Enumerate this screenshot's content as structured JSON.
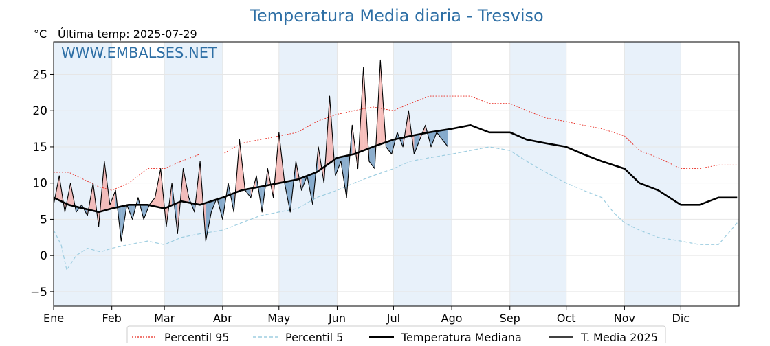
{
  "title": "Temperatura Media diaria - Tresviso",
  "unit_label": "°C",
  "last_temp": "Última temp: 2025-07-29",
  "watermark": "WWW.EMBALSES.NET",
  "colors": {
    "title": "#2e6fa5",
    "p95": "#e8261c",
    "p5": "#9dcde0",
    "median": "#000000",
    "current": "#000000",
    "fill_above": "#f4a9a6",
    "fill_below": "#5b8bb8",
    "month_band": "#e8f1fa"
  },
  "chart_data": {
    "type": "line",
    "xlabel": "",
    "ylabel": "°C",
    "ylim": [
      -7,
      29.5
    ],
    "xlim": [
      0,
      365
    ],
    "grid": true,
    "yticks": [
      -5,
      0,
      5,
      10,
      15,
      20,
      25
    ],
    "ytick_labels": [
      "−5",
      "0",
      "5",
      "10",
      "15",
      "20",
      "25"
    ],
    "months": [
      {
        "label": "Ene",
        "day": 0
      },
      {
        "label": "Feb",
        "day": 31
      },
      {
        "label": "Mar",
        "day": 59
      },
      {
        "label": "Abr",
        "day": 90
      },
      {
        "label": "May",
        "day": 120
      },
      {
        "label": "Jun",
        "day": 151
      },
      {
        "label": "Jul",
        "day": 181
      },
      {
        "label": "Ago",
        "day": 212
      },
      {
        "label": "Sep",
        "day": 243
      },
      {
        "label": "Oct",
        "day": 273
      },
      {
        "label": "Nov",
        "day": 304
      },
      {
        "label": "Dic",
        "day": 334
      }
    ],
    "legend_position": "bottom",
    "series": [
      {
        "name": "Percentil 95",
        "style": "dotted-red",
        "x": [
          0,
          8,
          16,
          24,
          31,
          40,
          50,
          59,
          68,
          78,
          90,
          100,
          110,
          120,
          130,
          140,
          151,
          160,
          170,
          181,
          190,
          200,
          212,
          222,
          232,
          243,
          252,
          262,
          273,
          282,
          292,
          304,
          312,
          322,
          334,
          344,
          354,
          364
        ],
        "y": [
          11.5,
          11.5,
          10.5,
          9.5,
          9,
          10,
          12,
          12,
          13,
          14,
          14,
          15.5,
          16,
          16.5,
          17,
          18.5,
          19.5,
          20,
          20.5,
          20,
          21,
          22,
          22,
          22,
          21,
          21,
          20,
          19,
          18.5,
          18,
          17.5,
          16.5,
          14.5,
          13.5,
          12,
          12,
          12.5,
          12.5
        ]
      },
      {
        "name": "Percentil 5",
        "style": "dashed-lightblue",
        "x": [
          0,
          4,
          7,
          12,
          18,
          25,
          31,
          40,
          50,
          59,
          68,
          78,
          90,
          100,
          110,
          120,
          130,
          140,
          151,
          160,
          170,
          181,
          190,
          200,
          212,
          222,
          232,
          243,
          252,
          262,
          273,
          282,
          292,
          298,
          304,
          312,
          322,
          334,
          344,
          354,
          364
        ],
        "y": [
          3.5,
          1.5,
          -2,
          0,
          1,
          0.5,
          1,
          1.5,
          2,
          1.5,
          2.5,
          3,
          3.5,
          4.5,
          5.5,
          6,
          6.5,
          8,
          9,
          10,
          11,
          12,
          13,
          13.5,
          14,
          14.5,
          15,
          14.5,
          13,
          11.5,
          10,
          9,
          8,
          6,
          4.5,
          3.5,
          2.5,
          2,
          1.5,
          1.5,
          4.5
        ]
      },
      {
        "name": "Temperatura Mediana",
        "style": "thick-black",
        "x": [
          0,
          8,
          16,
          24,
          31,
          40,
          50,
          59,
          68,
          78,
          90,
          100,
          110,
          120,
          130,
          140,
          151,
          160,
          170,
          181,
          190,
          200,
          212,
          222,
          232,
          243,
          252,
          262,
          273,
          282,
          292,
          304,
          312,
          322,
          334,
          344,
          354,
          364
        ],
        "y": [
          8,
          7,
          6.5,
          6,
          6.5,
          7,
          7,
          6.5,
          7.5,
          7,
          8,
          9,
          9.5,
          10,
          10.5,
          11.5,
          13.5,
          14,
          15,
          16,
          16.5,
          17,
          17.5,
          18,
          17,
          17,
          16,
          15.5,
          15,
          14,
          13,
          12,
          10,
          9,
          7,
          7,
          8,
          8
        ]
      },
      {
        "name": "T. Media 2025",
        "style": "thin-black",
        "x": [
          0,
          3,
          6,
          9,
          12,
          15,
          18,
          21,
          24,
          27,
          30,
          33,
          36,
          39,
          42,
          45,
          48,
          51,
          54,
          57,
          60,
          63,
          66,
          69,
          72,
          75,
          78,
          81,
          84,
          87,
          90,
          93,
          96,
          99,
          102,
          105,
          108,
          111,
          114,
          117,
          120,
          123,
          126,
          129,
          132,
          135,
          138,
          141,
          144,
          147,
          150,
          153,
          156,
          159,
          162,
          165,
          168,
          171,
          174,
          177,
          180,
          183,
          186,
          189,
          192,
          195,
          198,
          201,
          204,
          207,
          210
        ],
        "y": [
          7,
          11,
          6,
          10,
          6,
          7,
          5.5,
          10,
          4,
          13,
          7,
          9,
          2,
          7,
          5,
          8,
          5,
          7,
          8,
          12,
          4,
          10,
          3,
          12,
          8,
          6,
          13,
          2,
          6,
          8,
          5,
          10,
          6,
          16,
          9,
          8,
          11,
          6,
          12,
          8,
          17,
          10,
          6,
          13,
          9,
          11,
          7,
          15,
          10,
          22,
          11,
          13,
          8,
          18,
          12,
          26,
          13,
          12,
          27,
          15,
          14,
          17,
          15,
          20,
          14,
          16,
          18,
          15,
          17,
          16,
          15
        ]
      }
    ]
  },
  "legend": [
    {
      "label": "Percentil 95",
      "style": "dotted-red"
    },
    {
      "label": "Percentil 5",
      "style": "dashed-lightblue"
    },
    {
      "label": "Temperatura Mediana",
      "style": "thick-black"
    },
    {
      "label": "T. Media 2025",
      "style": "thin-black"
    }
  ]
}
